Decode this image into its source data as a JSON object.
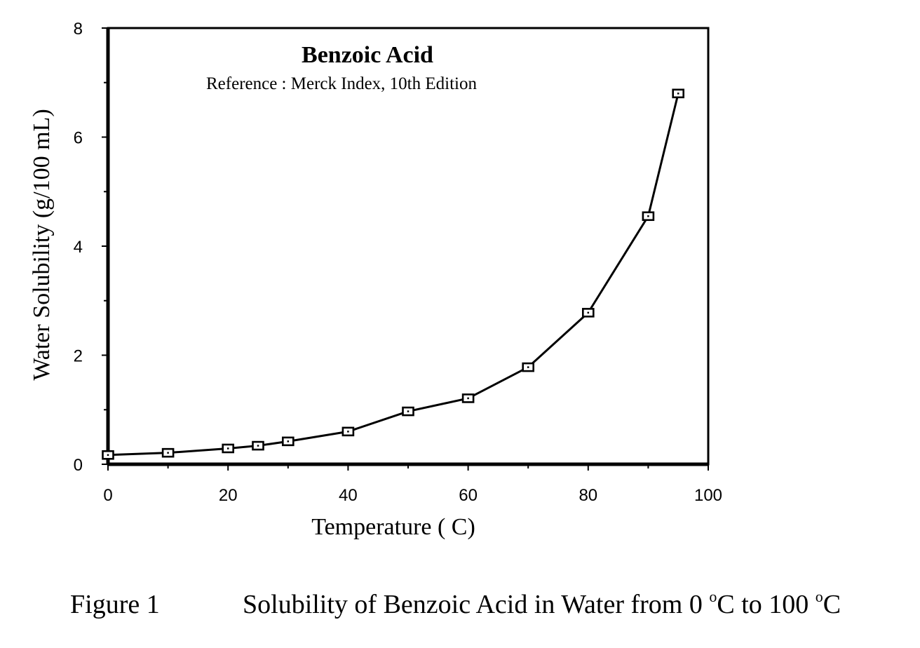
{
  "chart_data": {
    "type": "line",
    "title": "Benzoic Acid",
    "subtitle": "Reference : Merck Index, 10th Edition",
    "xlabel": "Temperature ( C)",
    "ylabel": "Water Solubility (g/100 mL)",
    "xlim": [
      0,
      100
    ],
    "ylim": [
      0,
      8
    ],
    "xticks": [
      "0",
      "20",
      "40",
      "60",
      "80",
      "100"
    ],
    "yticks": [
      "0",
      "2",
      "4",
      "6",
      "8"
    ],
    "grid": false,
    "marker": "square",
    "line_color": "#000000",
    "x": [
      0,
      10,
      20,
      25,
      30,
      40,
      50,
      60,
      70,
      80,
      90,
      95
    ],
    "y": [
      0.17,
      0.21,
      0.29,
      0.34,
      0.42,
      0.6,
      0.97,
      1.21,
      1.78,
      2.78,
      4.55,
      6.8
    ]
  },
  "caption": {
    "label": "Figure 1",
    "text_start": "Solubility of Benzoic Acid in Water from 0",
    "degree_1": "o",
    "unit_1": "C to 100",
    "degree_2": "o",
    "unit_2": "C"
  }
}
